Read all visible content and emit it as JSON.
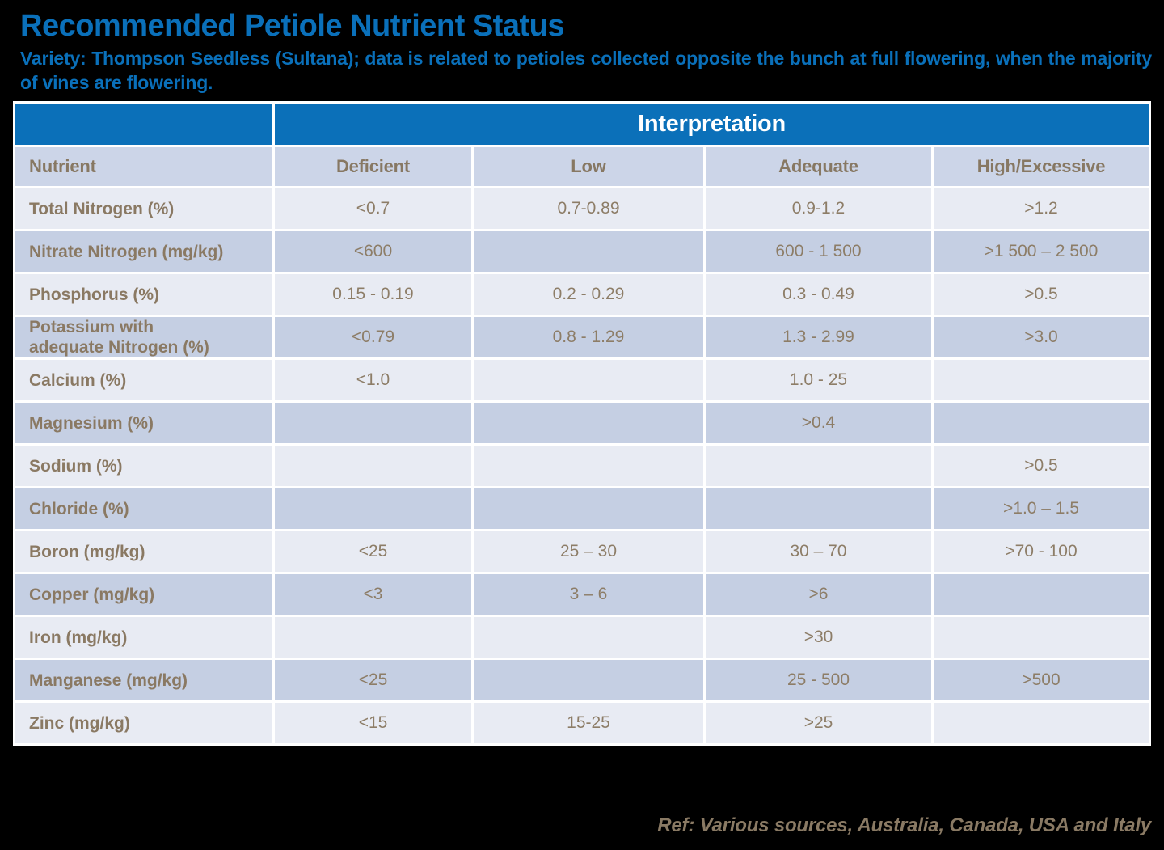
{
  "slide": {
    "title": "Recommended Petiole Nutrient Status",
    "subtitle": "Variety: Thompson Seedless (Sultana); data is related to petioles collected opposite the bunch at full flowering, when the majority of vines are flowering.",
    "reference": "Ref: Various sources, Australia, Canada, USA and Italy"
  },
  "table": {
    "interpretation_header": "Interpretation",
    "columns": {
      "nutrient": "Nutrient",
      "deficient": "Deficient",
      "low": "Low",
      "adequate": "Adequate",
      "high": "High/Excessive"
    },
    "rows": [
      {
        "nutrient": "Total Nitrogen (%)",
        "deficient": "<0.7",
        "low": "0.7-0.89",
        "adequate": "0.9-1.2",
        "high": ">1.2"
      },
      {
        "nutrient": "Nitrate Nitrogen (mg/kg)",
        "deficient": "<600",
        "low": "",
        "adequate": "600 - 1 500",
        "high": ">1 500 – 2 500"
      },
      {
        "nutrient": "Phosphorus (%)",
        "deficient": "0.15 - 0.19",
        "low": "0.2 - 0.29",
        "adequate": "0.3 - 0.49",
        "high": ">0.5"
      },
      {
        "nutrient": "Potassium with\nadequate Nitrogen (%)",
        "deficient": "<0.79",
        "low": "0.8 - 1.29",
        "adequate": "1.3 - 2.99",
        "high": ">3.0"
      },
      {
        "nutrient": "Calcium (%)",
        "deficient": "<1.0",
        "low": "",
        "adequate": "1.0 - 25",
        "high": ""
      },
      {
        "nutrient": "Magnesium (%)",
        "deficient": "",
        "low": "",
        "adequate": ">0.4",
        "high": ""
      },
      {
        "nutrient": "Sodium (%)",
        "deficient": "",
        "low": "",
        "adequate": "",
        "high": ">0.5"
      },
      {
        "nutrient": "Chloride (%)",
        "deficient": "",
        "low": "",
        "adequate": "",
        "high": ">1.0 – 1.5"
      },
      {
        "nutrient": "Boron (mg/kg)",
        "deficient": "<25",
        "low": "25 – 30",
        "adequate": "30 – 70",
        "high": ">70 - 100"
      },
      {
        "nutrient": "Copper (mg/kg)",
        "deficient": "<3",
        "low": "3 – 6",
        "adequate": ">6",
        "high": ""
      },
      {
        "nutrient": "Iron (mg/kg)",
        "deficient": "",
        "low": "",
        "adequate": ">30",
        "high": ""
      },
      {
        "nutrient": "Manganese (mg/kg)",
        "deficient": "<25",
        "low": "",
        "adequate": "25 - 500",
        "high": ">500"
      },
      {
        "nutrient": "Zinc (mg/kg)",
        "deficient": "<15",
        "low": "15-25",
        "adequate": ">25",
        "high": ""
      }
    ]
  },
  "colors": {
    "page_background": "#000000",
    "title_blue": "#0a70ba",
    "header_band_blue": "#0b70b9",
    "column_header_bg": "#ccd5e8",
    "row_light_bg": "#e8ebf3",
    "row_dark_bg": "#c5cfe3",
    "gridline_white": "#ffffff",
    "text_brown": "#8a7963",
    "interpretation_text": "#ffffff"
  }
}
